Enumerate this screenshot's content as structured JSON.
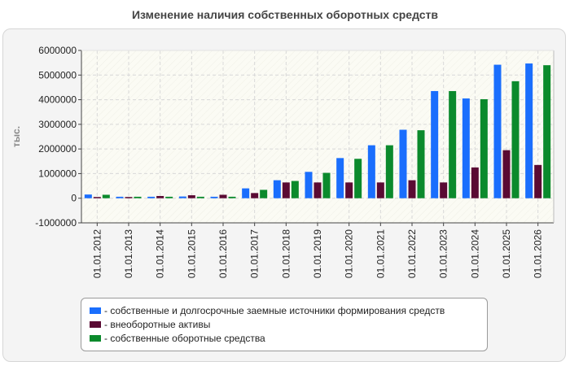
{
  "title": "Изменение наличия собственных оборотных средств",
  "chart_data": {
    "type": "bar",
    "title": "Изменение наличия собственных оборотных средств",
    "ylabel": "тыс.",
    "xlabel": "",
    "ylim": [
      -1000000,
      6000000
    ],
    "yticks": [
      "6000000",
      "5000000",
      "4000000",
      "3000000",
      "2000000",
      "1000000",
      "0",
      "-1000000"
    ],
    "ytick_values": [
      6000000,
      5000000,
      4000000,
      3000000,
      2000000,
      1000000,
      0,
      -1000000
    ],
    "categories": [
      "01.01.2012",
      "01.01.2013",
      "01.01.2014",
      "01.01.2015",
      "01.01.2016",
      "01.01.2017",
      "01.01.2018",
      "01.01.2019",
      "01.01.2020",
      "01.01.2021",
      "01.01.2022",
      "01.01.2023",
      "01.01.2024",
      "01.01.2025",
      "01.01.2026"
    ],
    "series": [
      {
        "name": "- собственные и долгосрочные заемные источники формирования средств",
        "color": "#1a6efd",
        "values": [
          150000,
          60000,
          60000,
          70000,
          60000,
          400000,
          730000,
          1070000,
          1630000,
          2150000,
          2780000,
          4350000,
          4050000,
          5420000,
          5470000
        ]
      },
      {
        "name": "- внеоборотные активы",
        "color": "#5a0a33",
        "values": [
          50000,
          50000,
          90000,
          120000,
          140000,
          210000,
          640000,
          640000,
          640000,
          640000,
          730000,
          640000,
          1250000,
          1950000,
          1350000
        ]
      },
      {
        "name": "- собственные оборотные средства",
        "color": "#0b8a2c",
        "values": [
          140000,
          60000,
          60000,
          60000,
          60000,
          340000,
          700000,
          1030000,
          1600000,
          2150000,
          2760000,
          4350000,
          4020000,
          4750000,
          5400000
        ]
      }
    ],
    "grid": true,
    "legend_position": "bottom"
  }
}
